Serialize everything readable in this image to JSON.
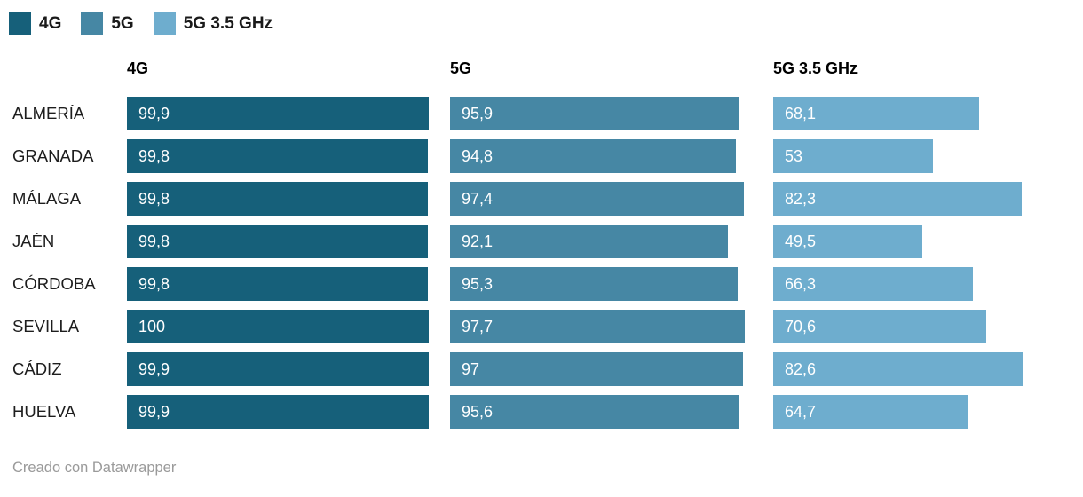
{
  "footer": {
    "credit": "Creado con Datawrapper"
  },
  "chart_data": {
    "type": "bar",
    "orientation": "horizontal",
    "layout": "grouped-split-columns",
    "title": "",
    "xlabel": "",
    "ylabel": "",
    "value_range": [
      0,
      100
    ],
    "grid": false,
    "legend_position": "top",
    "categories": [
      "ALMERÍA",
      "GRANADA",
      "MÁLAGA",
      "JAÉN",
      "CÓRDOBA",
      "SEVILLA",
      "CÁDIZ",
      "HUELVA"
    ],
    "series": [
      {
        "name": "4G",
        "color": "#16607a",
        "values": [
          99.9,
          99.8,
          99.8,
          99.8,
          99.8,
          100,
          99.9,
          99.9
        ],
        "labels": [
          "99,9",
          "99,8",
          "99,8",
          "99,8",
          "99,8",
          "100",
          "99,9",
          "99,9"
        ]
      },
      {
        "name": "5G",
        "color": "#4687a4",
        "values": [
          95.9,
          94.8,
          97.4,
          92.1,
          95.3,
          97.7,
          97,
          95.6
        ],
        "labels": [
          "95,9",
          "94,8",
          "97,4",
          "92,1",
          "95,3",
          "97,7",
          "97",
          "95,6"
        ]
      },
      {
        "name": "5G 3.5 GHz",
        "color": "#6eadce",
        "values": [
          68.1,
          53,
          82.3,
          49.5,
          66.3,
          70.6,
          82.6,
          64.7
        ],
        "labels": [
          "68,1",
          "53",
          "82,3",
          "49,5",
          "66,3",
          "70,6",
          "82,6",
          "64,7"
        ]
      }
    ]
  }
}
